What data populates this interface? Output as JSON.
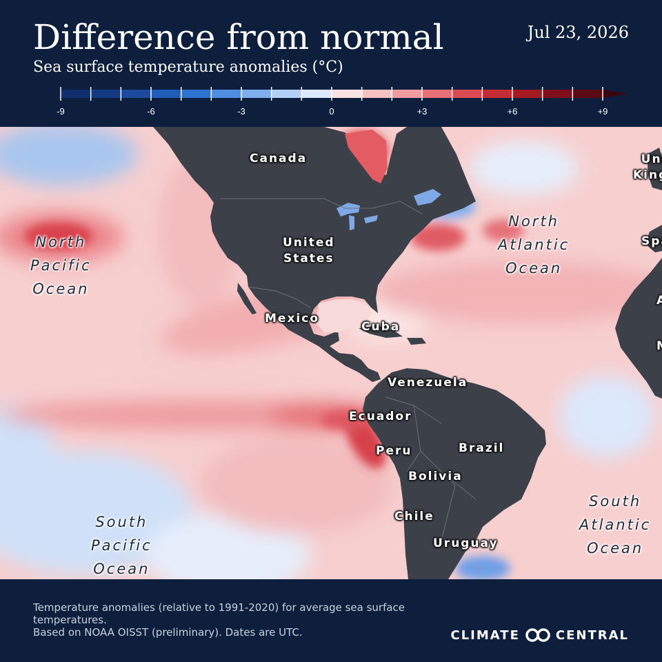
{
  "header": {
    "title": "Difference from normal",
    "subtitle": "Sea surface temperature anomalies (°C)",
    "date": "Jul 23, 2026"
  },
  "legend": {
    "labels": [
      {
        "text": "-9",
        "value": -9
      },
      {
        "text": "-6",
        "value": -6
      },
      {
        "text": "-3",
        "value": -3
      },
      {
        "text": "0",
        "value": 0
      },
      {
        "text": "+3",
        "value": 3
      },
      {
        "text": "+6",
        "value": 6
      },
      {
        "text": "+9",
        "value": 9
      }
    ],
    "bins": [
      {
        "min": -9,
        "max": -8,
        "color": "#0f2e6b"
      },
      {
        "min": -8,
        "max": -7,
        "color": "#143b82"
      },
      {
        "min": -7,
        "max": -6,
        "color": "#1a4b9c"
      },
      {
        "min": -6,
        "max": -5,
        "color": "#205cb8"
      },
      {
        "min": -5,
        "max": -4,
        "color": "#2f73d0"
      },
      {
        "min": -4,
        "max": -3,
        "color": "#4f8ee0"
      },
      {
        "min": -3,
        "max": -2,
        "color": "#7eaef0"
      },
      {
        "min": -2,
        "max": -1,
        "color": "#b4cff6"
      },
      {
        "min": -1,
        "max": 0,
        "color": "#dce8fb"
      },
      {
        "min": 0,
        "max": 1,
        "color": "#fbe2e2"
      },
      {
        "min": 1,
        "max": 2,
        "color": "#f6c1c1"
      },
      {
        "min": 2,
        "max": 3,
        "color": "#f09b9e"
      },
      {
        "min": 3,
        "max": 4,
        "color": "#e96f76"
      },
      {
        "min": 4,
        "max": 5,
        "color": "#dc4a52"
      },
      {
        "min": 5,
        "max": 6,
        "color": "#c72c35"
      },
      {
        "min": 6,
        "max": 7,
        "color": "#a61a23"
      },
      {
        "min": 7,
        "max": 8,
        "color": "#7f0f1a"
      },
      {
        "min": 8,
        "max": 9,
        "color": "#5a0a14"
      }
    ],
    "overflow_color": "#3a0610"
  },
  "map": {
    "countries": {
      "canada": "Canada",
      "united_states": "United\nStates",
      "mexico": "Mexico",
      "cuba": "Cuba",
      "venezuela": "Venezuela",
      "ecuador": "Ecuador",
      "peru": "Peru",
      "brazil": "Brazil",
      "bolivia": "Bolivia",
      "chile": "Chile",
      "uruguay": "Uruguay",
      "united_kingdom": "United\nKingdom",
      "spain": "Spain",
      "algeria": "Algeria",
      "mali": "Mali"
    },
    "oceans": {
      "north_pacific": "North\nPacific\nOcean",
      "north_atlantic": "North\nAtlantic\nOcean",
      "south_pacific": "South\nPacific\nOcean",
      "south_atlantic": "South\nAtlantic\nOcean"
    },
    "colors": {
      "land": "#3c4048",
      "ocean_base": "#f7cfcf",
      "border": "#6a6f78"
    }
  },
  "footer": {
    "note_line1": "Temperature anomalies (relative to 1991-2020) for average sea surface temperatures.",
    "note_line2": "Based on NOAA OISST (preliminary). Dates are UTC.",
    "logo_left": "CLIMATE",
    "logo_right": "CENTRAL"
  }
}
